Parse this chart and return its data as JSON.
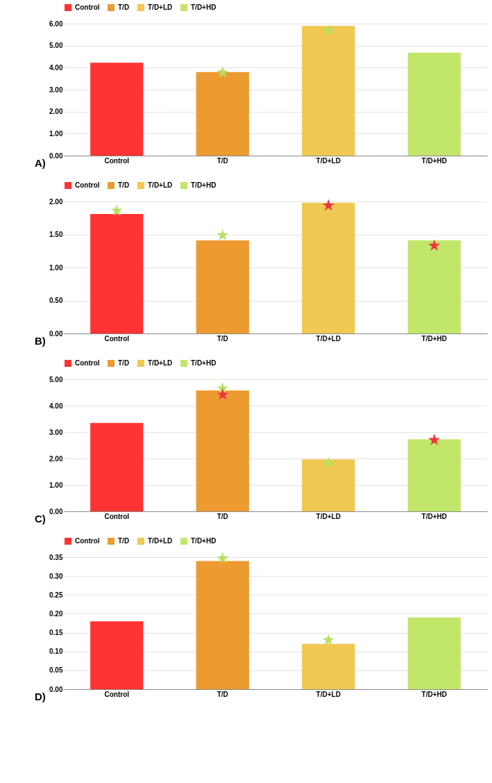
{
  "chart_data": [
    {
      "type": "bar",
      "categories": [
        "Control",
        "T/D",
        "T/D+LD",
        "T/D+HD"
      ],
      "legend": "top",
      "grid": "y",
      "annotations": [
        "A)"
      ],
      "ylim": [
        0,
        6
      ],
      "yticks": [
        {
          "value": 0,
          "label": "0.00"
        },
        {
          "value": 1,
          "label": "1.00"
        },
        {
          "value": 2,
          "label": "2.00"
        },
        {
          "value": 3,
          "label": "3.00"
        },
        {
          "value": 4,
          "label": "4.00"
        },
        {
          "value": 5,
          "label": "5.00"
        },
        {
          "value": 6,
          "label": "6.00"
        }
      ],
      "series": [
        {
          "name": "Control",
          "color": "#ff3333",
          "values": [
            4.22,
            null,
            null,
            null
          ]
        },
        {
          "name": "T/D",
          "color": "#ed9a31",
          "values": [
            null,
            3.8,
            null,
            null
          ]
        },
        {
          "name": "T/D+LD",
          "color": "#f0c852",
          "values": [
            null,
            null,
            5.9,
            null
          ]
        },
        {
          "name": "T/D+HD",
          "color": "#c1e66a",
          "values": [
            null,
            null,
            null,
            4.68
          ]
        },
        {
          "type": "scatter",
          "marker": "star",
          "colors": [
            "#b5e061",
            "#b5e061",
            "#b5e061",
            "#b5e061"
          ],
          "values": [
            null,
            3.78,
            5.68,
            null
          ]
        }
      ]
    },
    {
      "type": "bar",
      "categories": [
        "Control",
        "T/D",
        "T/D+LD",
        "T/D+HD"
      ],
      "legend": "top",
      "grid": "y",
      "annotations": [
        "B)"
      ],
      "ylim": [
        0,
        2
      ],
      "yticks": [
        {
          "value": 0,
          "label": "0.00"
        },
        {
          "value": 0.5,
          "label": "0.50"
        },
        {
          "value": 1,
          "label": "1.00"
        },
        {
          "value": 1.5,
          "label": "1.50"
        },
        {
          "value": 2,
          "label": "2.00"
        }
      ],
      "series": [
        {
          "name": "Control",
          "color": "#ff3333",
          "values": [
            1.81,
            null,
            null,
            null
          ]
        },
        {
          "name": "T/D",
          "color": "#ed9a31",
          "values": [
            null,
            1.41,
            null,
            null
          ]
        },
        {
          "name": "T/D+LD",
          "color": "#f0c852",
          "values": [
            null,
            null,
            1.98,
            null
          ]
        },
        {
          "name": "T/D+HD",
          "color": "#c1e66a",
          "values": [
            null,
            null,
            null,
            1.41
          ]
        },
        {
          "type": "scatter",
          "marker": "star",
          "colors": [
            "#b5e061",
            "#b5e061",
            "#ef3340",
            "#ef3340"
          ],
          "values": [
            1.86,
            1.49,
            1.94,
            1.33
          ]
        }
      ]
    },
    {
      "type": "bar",
      "categories": [
        "Control",
        "T/D",
        "T/D+LD",
        "T/D+HD"
      ],
      "legend": "top",
      "grid": "y",
      "annotations": [
        "C)"
      ],
      "ylim": [
        0,
        5
      ],
      "yticks": [
        {
          "value": 0,
          "label": "0.00"
        },
        {
          "value": 1,
          "label": "1.00"
        },
        {
          "value": 2,
          "label": "2.00"
        },
        {
          "value": 3,
          "label": "3.00"
        },
        {
          "value": 4,
          "label": "4.00"
        },
        {
          "value": 5,
          "label": "5.00"
        }
      ],
      "series": [
        {
          "name": "Control",
          "color": "#ff3333",
          "values": [
            3.35,
            null,
            null,
            null
          ]
        },
        {
          "name": "T/D",
          "color": "#ed9a31",
          "values": [
            null,
            4.58,
            null,
            null
          ]
        },
        {
          "name": "T/D+LD",
          "color": "#f0c852",
          "values": [
            null,
            null,
            1.97,
            null
          ]
        },
        {
          "name": "T/D+HD",
          "color": "#c1e66a",
          "values": [
            null,
            null,
            null,
            2.73
          ]
        },
        {
          "type": "scatter",
          "marker": "star",
          "colors": [
            "#b5e061",
            "#b5e061",
            "#b5e061",
            "#ef3340"
          ],
          "values": [
            null,
            4.65,
            1.83,
            2.7
          ]
        },
        {
          "type": "scatter",
          "marker": "star",
          "colors": [
            "#ef3340",
            "#ef3340",
            "#ef3340",
            "#ef3340"
          ],
          "values": [
            null,
            4.42,
            null,
            null
          ]
        }
      ]
    },
    {
      "type": "bar",
      "categories": [
        "Control",
        "T/D",
        "T/D+LD",
        "T/D+HD"
      ],
      "legend": "top",
      "grid": "y",
      "annotations": [
        "D)"
      ],
      "ylim": [
        0,
        0.35
      ],
      "yticks": [
        {
          "value": 0,
          "label": "0.00"
        },
        {
          "value": 0.05,
          "label": "0.05"
        },
        {
          "value": 0.1,
          "label": "0.10"
        },
        {
          "value": 0.15,
          "label": "0.15"
        },
        {
          "value": 0.2,
          "label": "0.20"
        },
        {
          "value": 0.25,
          "label": "0.25"
        },
        {
          "value": 0.3,
          "label": "0.30"
        },
        {
          "value": 0.35,
          "label": "0.35"
        }
      ],
      "series": [
        {
          "name": "Control",
          "color": "#ff3333",
          "values": [
            0.18,
            null,
            null,
            null
          ]
        },
        {
          "name": "T/D",
          "color": "#ed9a31",
          "values": [
            null,
            0.34,
            null,
            null
          ]
        },
        {
          "name": "T/D+LD",
          "color": "#f0c852",
          "values": [
            null,
            null,
            0.12,
            null
          ]
        },
        {
          "name": "T/D+HD",
          "color": "#c1e66a",
          "values": [
            null,
            null,
            null,
            0.19
          ]
        },
        {
          "type": "scatter",
          "marker": "star",
          "colors": [
            "#b5e061",
            "#b5e061",
            "#b5e061",
            "#b5e061"
          ],
          "values": [
            null,
            0.347,
            0.13,
            null
          ]
        }
      ]
    }
  ]
}
